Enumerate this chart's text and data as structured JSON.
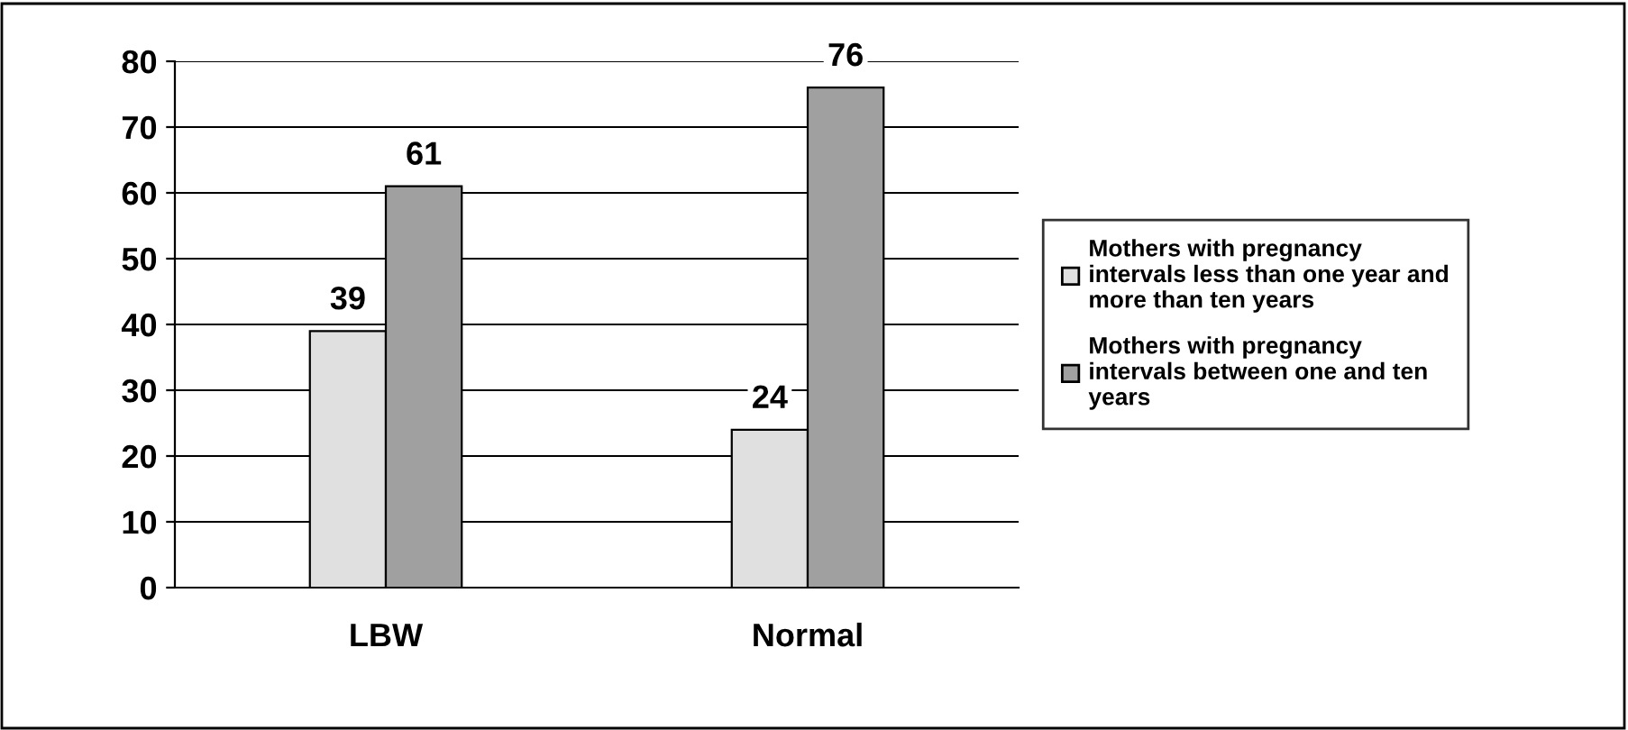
{
  "chart_data": {
    "type": "bar",
    "categories": [
      "LBW",
      "Normal"
    ],
    "series": [
      {
        "name": "Mothers with pregnancy\nintervals less than one year and\nmore than ten years",
        "color": "#e0e0e0",
        "values": [
          39,
          24
        ]
      },
      {
        "name": "Mothers with pregnancy\nintervals between one and ten\nyears",
        "color": "#a0a0a0",
        "values": [
          61,
          76
        ]
      }
    ],
    "ylim": [
      0,
      80
    ],
    "yticks": [
      0,
      10,
      20,
      30,
      40,
      50,
      60,
      70,
      80
    ],
    "grid": "y",
    "legend": "right",
    "data_labels": true
  }
}
